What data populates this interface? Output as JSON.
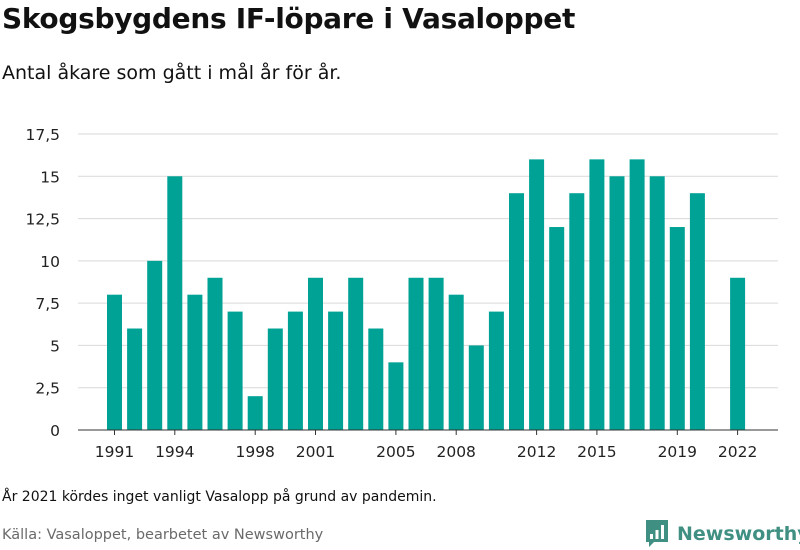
{
  "header": {
    "title": "Skogsbygdens IF-löpare i Vasaloppet",
    "subtitle": "Antal åkare som gått i mål år för år."
  },
  "footer": {
    "footnote": "År 2021 kördes inget vanligt Vasalopp på grund av pandemin.",
    "source": "Källa: Vasaloppet, bearbetet av Newsworthy",
    "brand": "Newsworthy"
  },
  "colors": {
    "bar": "#00a295",
    "grid": "#d9d9d9",
    "axis": "#333333",
    "brand": "#3f8f82"
  },
  "icons": {
    "brand_logo": "newsworthy-logo-icon"
  },
  "chart_data": {
    "type": "bar",
    "x": [
      1991,
      1992,
      1993,
      1994,
      1995,
      1996,
      1997,
      1998,
      1999,
      2000,
      2001,
      2002,
      2003,
      2004,
      2005,
      2006,
      2007,
      2008,
      2009,
      2010,
      2011,
      2012,
      2013,
      2014,
      2015,
      2016,
      2017,
      2018,
      2019,
      2020,
      2021,
      2022
    ],
    "values": [
      8,
      6,
      10,
      15,
      8,
      9,
      7,
      2,
      6,
      7,
      9,
      7,
      9,
      6,
      4,
      9,
      9,
      8,
      5,
      7,
      14,
      16,
      12,
      14,
      16,
      15,
      16,
      15,
      12,
      14,
      null,
      9
    ],
    "ylim": [
      0,
      17.5
    ],
    "yticks": [
      0,
      2.5,
      5,
      7.5,
      10,
      12.5,
      15,
      17.5
    ],
    "ytick_labels": [
      "0",
      "2,5",
      "5",
      "7,5",
      "10",
      "12,5",
      "15",
      "17,5"
    ],
    "xticks": [
      1991,
      1994,
      1998,
      2001,
      2005,
      2008,
      2012,
      2015,
      2019,
      2022
    ],
    "xtick_labels": [
      "1991",
      "1994",
      "1998",
      "2001",
      "2005",
      "2008",
      "2012",
      "2015",
      "2019",
      "2022"
    ],
    "grid": true,
    "legend": "none"
  }
}
